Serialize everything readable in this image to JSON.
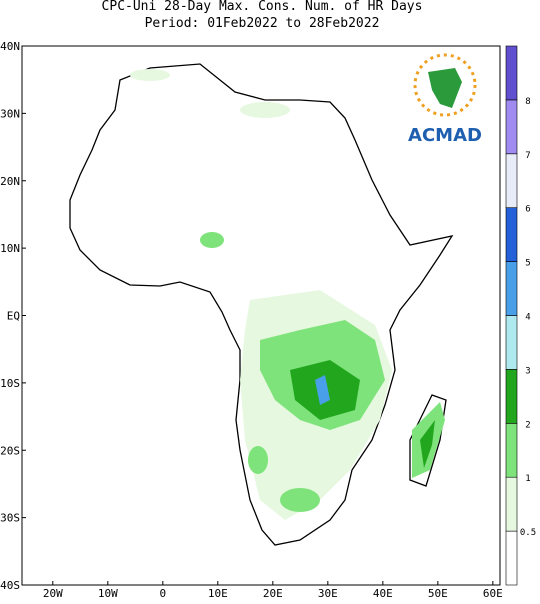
{
  "title": [
    "CPC-Uni 28-Day Max. Cons. Num. of HR Days",
    "Period: 01Feb2022 to 28Feb2022"
  ],
  "map": {
    "lon_range": [
      -25.6,
      61.3
    ],
    "lat_range": [
      -40,
      40
    ],
    "lon_ticks": [
      {
        "value": -20,
        "label": "20W"
      },
      {
        "value": -10,
        "label": "10W"
      },
      0,
      {
        "value": 10,
        "label": "10E"
      },
      {
        "value": 20,
        "label": "20E"
      },
      {
        "value": 30,
        "label": "30E"
      },
      {
        "value": 40,
        "label": "40E"
      },
      {
        "value": 50,
        "label": "50E"
      },
      {
        "value": 60,
        "label": "60E"
      }
    ],
    "lat_ticks": [
      {
        "value": 40,
        "label": "40N"
      },
      {
        "value": 30,
        "label": "30N"
      },
      {
        "value": 20,
        "label": "20N"
      },
      {
        "value": 10,
        "label": "10N"
      },
      {
        "value": 0,
        "label": "EQ"
      },
      {
        "value": -10,
        "label": "10S"
      },
      {
        "value": -20,
        "label": "20S"
      },
      {
        "value": -30,
        "label": "30S"
      },
      {
        "value": -40,
        "label": "40S"
      }
    ]
  },
  "colorbar": {
    "levels": [
      0.5,
      1,
      2,
      3,
      4,
      5,
      6,
      7,
      8
    ],
    "colors": [
      "#ffffff",
      "#e6f8e0",
      "#7ee37a",
      "#22a61e",
      "#aee9ef",
      "#4aa0e8",
      "#2460d8",
      "#e8ecf8",
      "#a08cf0",
      "#6050d0"
    ]
  },
  "logo": "ACMAD"
}
